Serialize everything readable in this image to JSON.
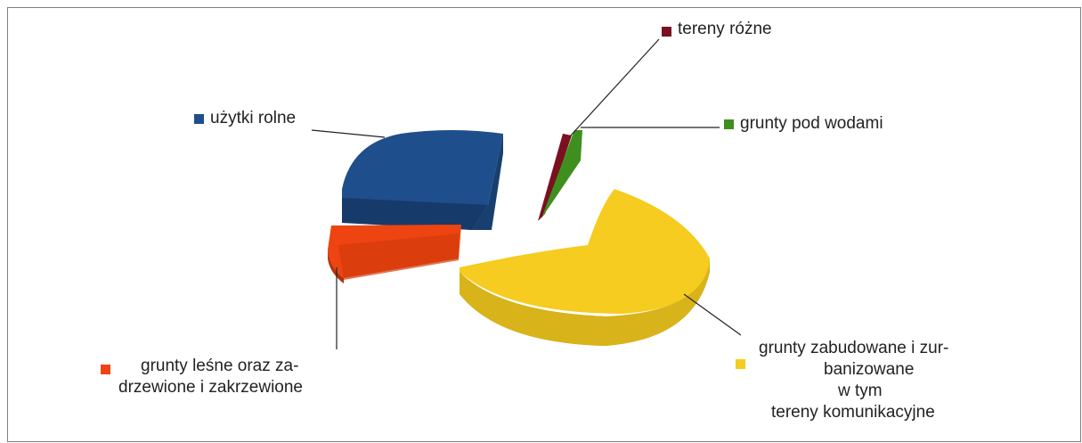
{
  "chart_data": {
    "type": "pie",
    "style": "3d-exploded",
    "title": "",
    "legend_placement": "callouts",
    "slices": [
      {
        "label": "użytki rolne",
        "value": 27.5,
        "color": "#1f4e8c"
      },
      {
        "label": "grunty leśne oraz zadrzewione i zakrzewione",
        "value": 8.0,
        "color": "#ee4411"
      },
      {
        "label": "grunty zabudowane i zurbanizowane w tym tereny komunikacyjne",
        "value": 61.5,
        "color": "#f5cc1f"
      },
      {
        "label": "tereny różne",
        "value": 1.5,
        "color": "#7a1020"
      },
      {
        "label": "grunty pod wodami",
        "value": 1.5,
        "color": "#3f8f1f"
      }
    ]
  },
  "labels": {
    "uzytki": "użytki rolne",
    "tereny_rozne": "tereny różne",
    "wody": "grunty pod wodami",
    "lesne_1": "grunty leśne oraz za-",
    "lesne_2": "drzewione i zakrzewione",
    "zab_1": "grunty zabudowane i zur-",
    "zab_2": "banizowane",
    "zab_3": "w tym",
    "zab_4": "tereny komunikacyjne"
  }
}
